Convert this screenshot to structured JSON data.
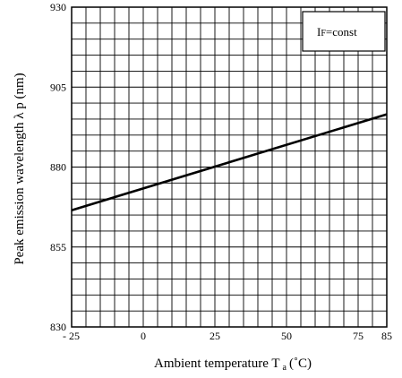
{
  "chart_data": {
    "type": "line",
    "title": "",
    "xlabel": "Ambient temperature T",
    "xlabel_sub": "a",
    "xlabel_unit": "(˚C)",
    "ylabel": "Peak emission wavelength λ p (nm)",
    "xlim": [
      -25,
      85
    ],
    "ylim": [
      830,
      930
    ],
    "x_ticks": [
      -25,
      0,
      25,
      50,
      75,
      85
    ],
    "x_tick_labels": [
      "- 25",
      "0",
      "25",
      "50",
      "75",
      "85"
    ],
    "y_ticks": [
      830,
      855,
      880,
      905,
      930
    ],
    "y_tick_labels": [
      "830",
      "855",
      "880",
      "905",
      "930"
    ],
    "grid": true,
    "grid_x_step": 5,
    "grid_y_step": 5,
    "annotation": {
      "main": "I",
      "sub": "F",
      "rest": "=const"
    },
    "series": [
      {
        "x": [
          -25,
          85
        ],
        "y": [
          866.5,
          896.5
        ],
        "color": "#000000"
      }
    ]
  }
}
